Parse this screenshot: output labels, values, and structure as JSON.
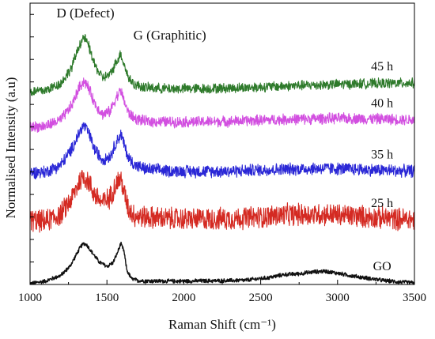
{
  "chart_data": {
    "type": "line",
    "title": "",
    "xlabel": "Raman Shift (cm⁻¹)",
    "ylabel": "Normalised Intensity (a.u)",
    "xlim": [
      1000,
      3500
    ],
    "x_ticks": [
      "1000",
      "1500",
      "2000",
      "2500",
      "3000",
      "3500"
    ],
    "y_ticks_labeled": false,
    "grid": false,
    "legend": "none",
    "annotations": [
      {
        "text": "D (Defect)",
        "x": 1350
      },
      {
        "text": "G (Graphitic)",
        "x": 1590
      }
    ],
    "series": [
      {
        "name": "GO",
        "color": "#111111",
        "noise": 0.8,
        "x": [
          1000,
          1100,
          1200,
          1260,
          1300,
          1330,
          1350,
          1370,
          1400,
          1450,
          1500,
          1540,
          1570,
          1590,
          1610,
          1630,
          1660,
          1700,
          1800,
          2000,
          2200,
          2400,
          2550,
          2650,
          2750,
          2850,
          2920,
          3000,
          3100,
          3200,
          3300,
          3400,
          3500
        ],
        "y": [
          0.3,
          1.2,
          3.2,
          6.5,
          10.5,
          13.5,
          14.6,
          14.0,
          11.6,
          8.0,
          6.4,
          7.8,
          11.5,
          14.5,
          12.0,
          5.0,
          2.0,
          1.4,
          1.2,
          1.2,
          1.3,
          1.5,
          2.4,
          3.5,
          3.8,
          4.5,
          4.7,
          4.0,
          3.0,
          2.2,
          1.4,
          0.9,
          0.6
        ]
      },
      {
        "name": "25 h",
        "color": "#d42a22",
        "noise": 4.5,
        "x": [
          1000,
          1100,
          1200,
          1270,
          1320,
          1350,
          1380,
          1420,
          1470,
          1520,
          1560,
          1590,
          1610,
          1640,
          1680,
          1750,
          1900,
          2100,
          2300,
          2500,
          2700,
          2900,
          3100,
          3300,
          3500
        ],
        "y": [
          22.8,
          22.4,
          25.0,
          30.5,
          36.5,
          38.6,
          36.5,
          32.0,
          29.0,
          31.0,
          36.0,
          37.5,
          33.0,
          27.0,
          24.5,
          24.0,
          23.4,
          23.2,
          23.4,
          24.0,
          24.8,
          25.0,
          24.4,
          23.6,
          23.0
        ]
      },
      {
        "name": "35 h",
        "color": "#2a27d6",
        "noise": 2.5,
        "x": [
          1000,
          1100,
          1200,
          1270,
          1320,
          1350,
          1380,
          1420,
          1470,
          1520,
          1560,
          1590,
          1610,
          1640,
          1680,
          1750,
          1900,
          2100,
          2300,
          2500,
          2700,
          2900,
          3100,
          3300,
          3500
        ],
        "y": [
          39.8,
          40.0,
          42.5,
          48.0,
          54.0,
          56.6,
          54.0,
          48.0,
          44.5,
          45.5,
          50.5,
          53.5,
          50.0,
          45.0,
          42.5,
          41.0,
          40.4,
          40.2,
          40.3,
          40.7,
          41.0,
          41.3,
          41.0,
          40.6,
          40.3
        ]
      },
      {
        "name": "40 h",
        "color": "#d24fe0",
        "noise": 2.2,
        "x": [
          1000,
          1100,
          1200,
          1270,
          1320,
          1350,
          1380,
          1420,
          1470,
          1520,
          1560,
          1590,
          1610,
          1640,
          1680,
          1750,
          1900,
          2100,
          2300,
          2500,
          2700,
          2900,
          3100,
          3300,
          3500
        ],
        "y": [
          56.0,
          56.3,
          58.5,
          63.5,
          70.0,
          72.4,
          70.0,
          64.5,
          60.5,
          61.5,
          66.5,
          69.0,
          65.5,
          61.0,
          59.0,
          58.0,
          57.8,
          57.8,
          58.0,
          58.4,
          58.7,
          59.0,
          59.0,
          58.8,
          58.5
        ]
      },
      {
        "name": "45 h",
        "color": "#2e7a2b",
        "noise": 2.0,
        "x": [
          1000,
          1100,
          1200,
          1270,
          1320,
          1350,
          1380,
          1420,
          1470,
          1520,
          1560,
          1590,
          1610,
          1640,
          1680,
          1750,
          1900,
          2100,
          2300,
          2500,
          2700,
          2900,
          3100,
          3300,
          3500
        ],
        "y": [
          68.5,
          69.0,
          71.5,
          77.0,
          85.0,
          88.0,
          85.0,
          78.0,
          73.5,
          74.5,
          79.0,
          82.0,
          78.5,
          73.5,
          71.0,
          70.0,
          69.6,
          69.6,
          69.8,
          70.2,
          70.6,
          71.0,
          71.3,
          71.5,
          71.6
        ]
      }
    ]
  }
}
